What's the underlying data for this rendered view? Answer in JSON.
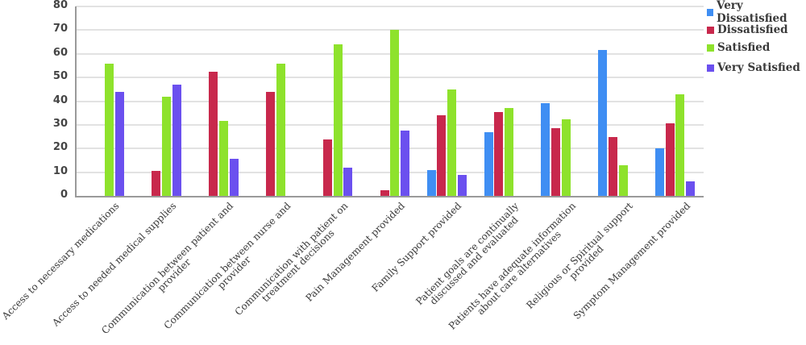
{
  "chart_data": {
    "type": "bar",
    "title": "",
    "xlabel": "",
    "ylabel": "",
    "ylim": [
      0,
      80
    ],
    "yticks": [
      0,
      10,
      20,
      30,
      40,
      50,
      60,
      70,
      80
    ],
    "grid": true,
    "legend_position": "right-top",
    "categories": [
      "Access to necessary medications",
      "Access to needed medical supplies",
      "Communication between patient and provider",
      "Communication between nurse and provider",
      "Communication with patient on treatment decisions",
      "Pain Management provided",
      "Family Support provided",
      "Patient goals are continually discussed and evaluated",
      "Patients have adequate information about care alternatives",
      "Religious or Spiritual support provided",
      "Symptom Management provided"
    ],
    "category_lines": [
      [
        "Access to necessary medications"
      ],
      [
        "Access to needed medical supplies"
      ],
      [
        "Communication between patient and",
        "provider"
      ],
      [
        "Communication between nurse and",
        "provider"
      ],
      [
        "Communication with patient on",
        "treatment decisions"
      ],
      [
        "Pain Management provided"
      ],
      [
        "Family Support provided"
      ],
      [
        "Patient goals are continually",
        "discussed and evaluated"
      ],
      [
        "Patients have adequate information",
        "about care alternatives"
      ],
      [
        "Religious or Spiritual support",
        "provided"
      ],
      [
        "Symptom Management provided"
      ]
    ],
    "series": [
      {
        "name": "Very Dissatisfied",
        "color": "#3f8ef3",
        "values": [
          0,
          0,
          0,
          0,
          0,
          0,
          11,
          27,
          39,
          61.5,
          20
        ]
      },
      {
        "name": "Dissatisfied",
        "color": "#c8284c",
        "values": [
          0,
          10.5,
          52.5,
          44,
          24,
          2.5,
          34,
          35.5,
          28.5,
          25,
          30.5
        ]
      },
      {
        "name": "Satisfied",
        "color": "#8ee22c",
        "values": [
          56,
          42,
          31.5,
          56,
          64,
          70,
          45,
          37,
          32.5,
          13,
          43
        ]
      },
      {
        "name": "Very Satisfied",
        "color": "#6b50ef",
        "values": [
          44,
          47,
          15.5,
          0,
          12,
          27.5,
          9,
          0,
          0,
          0,
          6
        ]
      }
    ]
  }
}
